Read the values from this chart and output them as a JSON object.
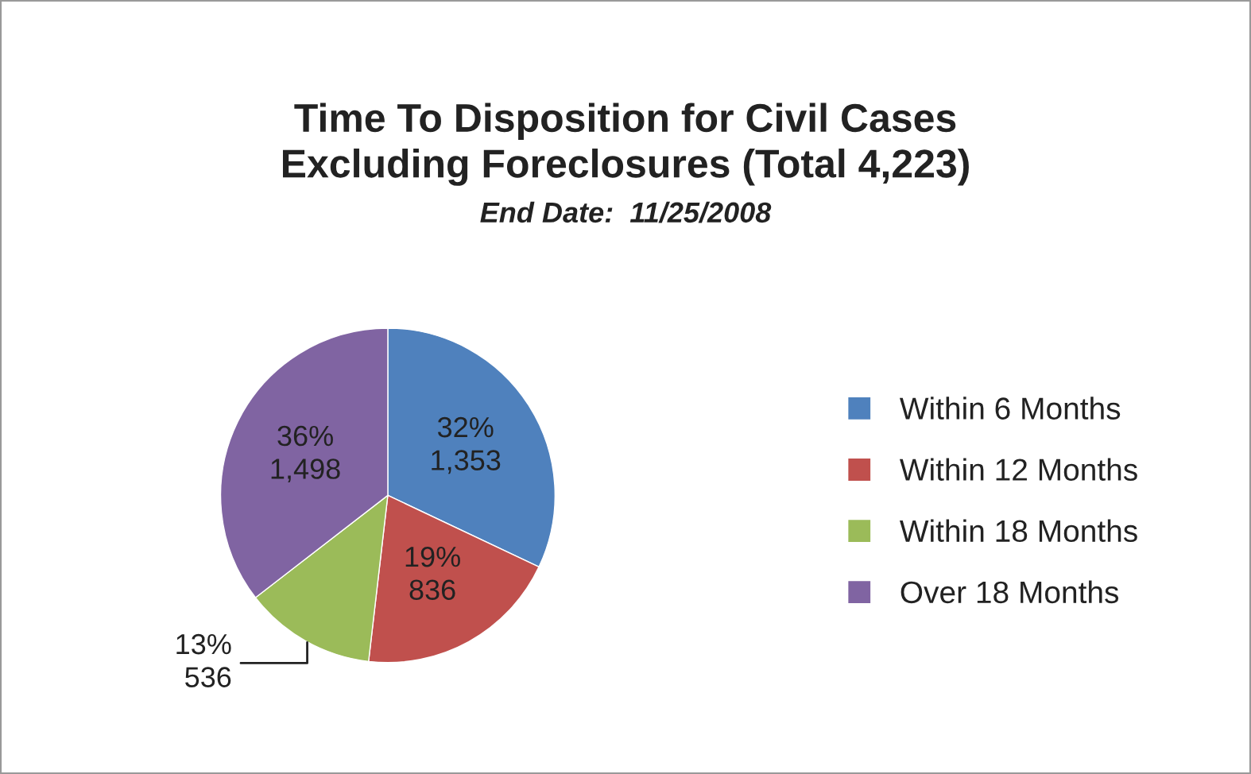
{
  "chart_data": {
    "type": "pie",
    "title": "Time To Disposition for Civil Cases\nExcluding Foreclosures (Total 4,223)",
    "subtitle": "End Date:  11/25/2008",
    "categories": [
      "Within 6 Months",
      "Within 12 Months",
      "Within 18 Months",
      "Over 18 Months"
    ],
    "values": [
      1353,
      836,
      536,
      1498
    ],
    "colors": [
      "#4f81bd",
      "#c0504d",
      "#9bbb59",
      "#8064a2"
    ],
    "value_labels": [
      "32%\n1,353",
      "19%\n836",
      "13%\n536",
      "36%\n1,498"
    ],
    "legend": "right"
  }
}
